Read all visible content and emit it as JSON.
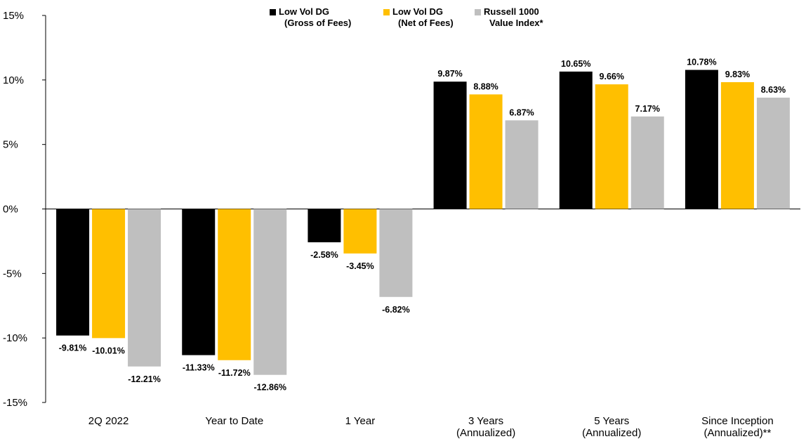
{
  "chart_data": {
    "type": "bar",
    "title": "",
    "xlabel": "",
    "ylabel": "",
    "ylim": [
      -15,
      15
    ],
    "y_ticks": [
      15,
      10,
      5,
      0,
      -5,
      -10,
      -15
    ],
    "y_tick_labels": [
      "15%",
      "10%",
      "5%",
      "0%",
      "-5%",
      "-10%",
      "-15%"
    ],
    "categories": [
      [
        "2Q 2022"
      ],
      [
        "Year to Date"
      ],
      [
        "1 Year"
      ],
      [
        "3 Years",
        "(Annualized)"
      ],
      [
        "5 Years",
        "(Annualized)"
      ],
      [
        "Since Inception",
        "(Annualized)**"
      ]
    ],
    "series": [
      {
        "name": [
          "Low Vol DG",
          "(Gross of Fees)"
        ],
        "color": "#000000",
        "values": [
          -9.81,
          -11.33,
          -2.58,
          9.87,
          10.65,
          10.78
        ],
        "labels": [
          "-9.81%",
          "-11.33%",
          "-2.58%",
          "9.87%",
          "10.65%",
          "10.78%"
        ]
      },
      {
        "name": [
          "Low Vol DG",
          "(Net of Fees)"
        ],
        "color": "#FFBF00",
        "values": [
          -10.01,
          -11.72,
          -3.45,
          8.88,
          9.66,
          9.83
        ],
        "labels": [
          "-10.01%",
          "-11.72%",
          "-3.45%",
          "8.88%",
          "9.66%",
          "9.83%"
        ]
      },
      {
        "name": [
          "Russell 1000",
          "Value Index*"
        ],
        "color": "#BFBFBF",
        "values": [
          -12.21,
          -12.86,
          -6.82,
          6.87,
          7.17,
          8.63
        ],
        "labels": [
          "-12.21%",
          "-12.86%",
          "-6.82%",
          "6.87%",
          "7.17%",
          "8.63%"
        ]
      }
    ],
    "grid": false,
    "legend_position": "top-center"
  }
}
